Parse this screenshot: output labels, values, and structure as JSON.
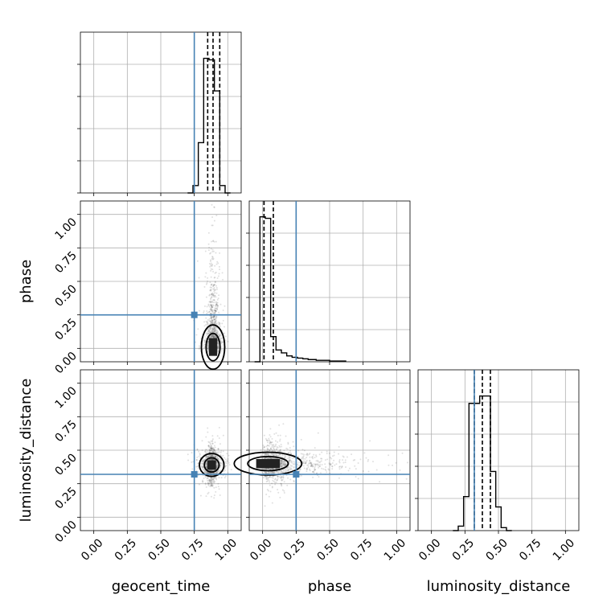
{
  "chart_data": {
    "type": "corner",
    "parameters": [
      "geocent_time",
      "phase",
      "luminosity_distance"
    ],
    "axis_range": [
      -0.1,
      1.1
    ],
    "ticks": [
      0.0,
      0.25,
      0.5,
      0.75,
      1.0
    ],
    "tick_labels": [
      "0.00",
      "0.25",
      "0.50",
      "0.75",
      "1.00"
    ],
    "grid": true,
    "truths": {
      "geocent_time": 0.75,
      "phase": 0.25,
      "luminosity_distance": 0.32
    },
    "colors": {
      "truth": "#4682b4",
      "hist": "#000000",
      "samples": "#000000",
      "grid": "#b0b0b0"
    },
    "histograms": {
      "geocent_time": {
        "bin_edges": [
          0.74,
          0.78,
          0.82,
          0.86,
          0.9,
          0.94,
          0.98,
          1.02
        ],
        "counts": [
          0.05,
          0.34,
          0.91,
          0.9,
          0.69,
          0.05,
          0.0
        ],
        "quantiles": [
          0.85,
          0.89,
          0.94
        ]
      },
      "phase": {
        "bin_edges": [
          -0.02,
          0.02,
          0.06,
          0.1,
          0.14,
          0.18,
          0.22,
          0.26,
          0.3,
          0.34,
          0.4,
          0.5,
          0.62
        ],
        "counts": [
          0.98,
          0.97,
          0.17,
          0.08,
          0.06,
          0.04,
          0.03,
          0.025,
          0.02,
          0.015,
          0.01,
          0.005
        ],
        "quantiles": [
          0.01,
          0.01,
          0.08
        ]
      },
      "luminosity_distance": {
        "bin_edges": [
          0.2,
          0.24,
          0.28,
          0.32,
          0.36,
          0.4,
          0.44,
          0.48,
          0.52,
          0.56,
          0.6
        ],
        "counts": [
          0.03,
          0.23,
          0.86,
          0.86,
          0.91,
          0.91,
          0.4,
          0.16,
          0.02,
          0.0
        ],
        "quantiles": [
          0.32,
          0.38,
          0.44
        ]
      }
    },
    "scatter_2d": [
      {
        "x": "geocent_time",
        "y": "phase",
        "center": [
          0.89,
          0.01
        ],
        "spread": [
          0.03,
          0.25
        ],
        "n": 1600
      },
      {
        "x": "geocent_time",
        "y": "luminosity_distance",
        "center": [
          0.88,
          0.39
        ],
        "spread": [
          0.035,
          0.06
        ],
        "n": 1600
      },
      {
        "x": "phase",
        "y": "luminosity_distance",
        "center": [
          0.04,
          0.4
        ],
        "spread": [
          0.25,
          0.06
        ],
        "n": 1600
      }
    ]
  }
}
